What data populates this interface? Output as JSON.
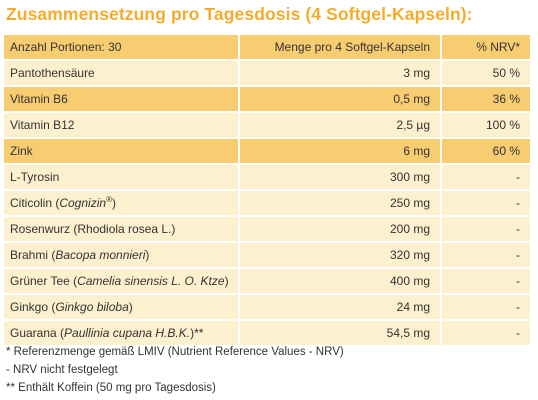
{
  "title": "Zusammensetzung pro Tagesdosis (4 Softgel-Kapseln):",
  "header": {
    "col1": "Anzahl Portionen: 30",
    "col2": "Menge pro 4 Softgel-Kapseln",
    "col3": "% NRV*"
  },
  "rows": [
    {
      "name": "Pantothensäure",
      "amount": "3 mg",
      "nrv": "50 %"
    },
    {
      "name": "Vitamin B6",
      "amount": "0,5 mg",
      "nrv": "36 %"
    },
    {
      "name": "Vitamin B12",
      "amount": "2,5 µg",
      "nrv": "100 %"
    },
    {
      "name": "Zink",
      "amount": "6 mg",
      "nrv": "60 %"
    },
    {
      "name": "L-Tyrosin",
      "amount": "300 mg",
      "nrv": "-"
    },
    {
      "name_plain": "Citicolin (",
      "name_italic": "Cognizin",
      "name_sup": "®",
      "name_end": ")",
      "amount": "250 mg",
      "nrv": "-"
    },
    {
      "name": "Rosenwurz (Rhodiola rosea L.)",
      "amount": "200 mg",
      "nrv": "-"
    },
    {
      "name_plain": "Brahmi (",
      "name_italic": "Bacopa monnieri",
      "name_end": ")",
      "amount": "320 mg",
      "nrv": "-"
    },
    {
      "name_plain": "Grüner Tee (",
      "name_italic": "Camelia sinensis L. O. Ktze",
      "name_end": ")",
      "amount": "400 mg",
      "nrv": "-"
    },
    {
      "name_plain": "Ginkgo (",
      "name_italic": "Ginkgo biloba",
      "name_end": ")",
      "amount": "24 mg",
      "nrv": "-"
    },
    {
      "name_plain": "Guarana (",
      "name_italic": "Paullinia cupana H.B.K.",
      "name_end": ")**",
      "amount": "54,5 mg",
      "nrv": "-"
    }
  ],
  "footnotes": [
    "* Referenzmenge gemäß LMIV (Nutrient Reference Values - NRV)",
    "- NRV nicht festgelegt",
    "** Enthält Koffein (50 mg pro Tagesdosis)"
  ]
}
